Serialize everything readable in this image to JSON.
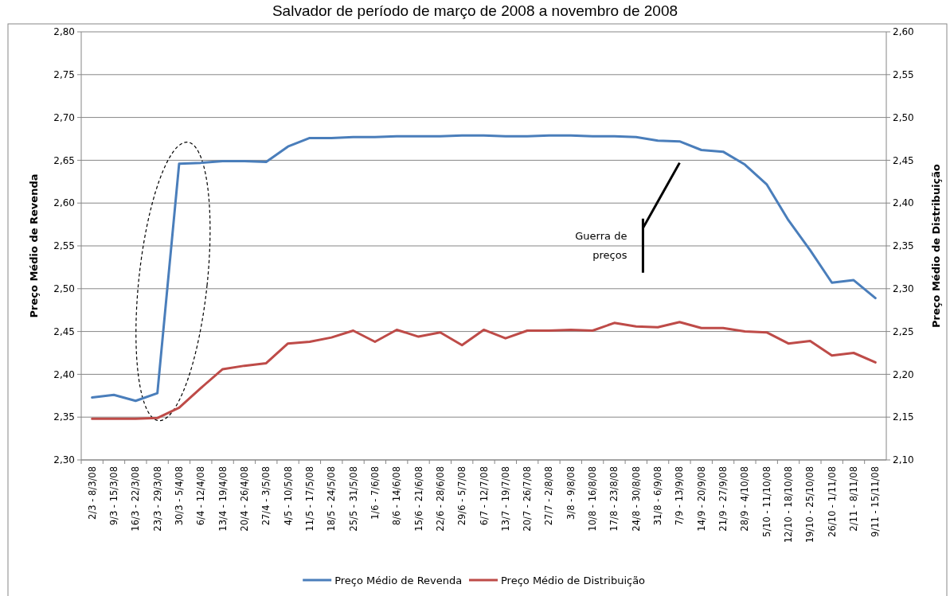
{
  "chart_data": {
    "type": "line",
    "title": "Salvador de período de março de 2008 a novembro de 2008",
    "ylabel": "Preço Médio de Revenda",
    "y2label": "Preço Médio de Distribuição",
    "categories": [
      "2/3 - 8/3/08",
      "9/3 - 15/3/08",
      "16/3 - 22/3/08",
      "23/3 - 29/3/08",
      "30/3 - 5/4/08",
      "6/4 - 12/4/08",
      "13/4 - 19/4/08",
      "20/4 - 26/4/08",
      "27/4 - 3/5/08",
      "4/5 - 10/5/08",
      "11/5 - 17/5/08",
      "18/5 - 24/5/08",
      "25/5 - 31/5/08",
      "1/6 - 7/6/08",
      "8/6 - 14/6/08",
      "15/6 - 21/6/08",
      "22/6 - 28/6/08",
      "29/6 - 5/7/08",
      "6/7 - 12/7/08",
      "13/7 - 19/7/08",
      "20/7 - 26/7/08",
      "27/7 - 2/8/08",
      "3/8 - 9/8/08",
      "10/8 - 16/8/08",
      "17/8 - 23/8/08",
      "24/8 - 30/8/08",
      "31/8 - 6/9/08",
      "7/9 - 13/9/08",
      "14/9 - 20/9/08",
      "21/9 - 27/9/08",
      "28/9 - 4/10/08",
      "5/10 - 11/10/08",
      "12/10 - 18/10/08",
      "19/10 - 25/10/08",
      "26/10 - 1/11/08",
      "2/11 - 8/11/08",
      "9/11 - 15/11/08"
    ],
    "series": [
      {
        "name": "Preço Médio de Revenda",
        "color": "#4a7ebb",
        "values": [
          2.373,
          2.376,
          2.369,
          2.378,
          2.646,
          2.647,
          2.649,
          2.649,
          2.648,
          2.666,
          2.676,
          2.676,
          2.677,
          2.677,
          2.678,
          2.678,
          2.678,
          2.679,
          2.679,
          2.678,
          2.678,
          2.679,
          2.679,
          2.678,
          2.678,
          2.677,
          2.673,
          2.672,
          2.662,
          2.66,
          2.645,
          2.622,
          2.58,
          2.545,
          2.507,
          2.51,
          2.489
        ]
      },
      {
        "name": "Preço Médio de Distribuição",
        "color": "#be4b48",
        "axis": "y2",
        "values": [
          2.148,
          2.148,
          2.148,
          2.149,
          2.161,
          2.184,
          2.206,
          2.21,
          2.213,
          2.236,
          2.238,
          2.243,
          2.251,
          2.238,
          2.252,
          2.244,
          2.249,
          2.234,
          2.252,
          2.242,
          2.251,
          2.251,
          2.252,
          2.251,
          2.26,
          2.256,
          2.255,
          2.261,
          2.254,
          2.254,
          2.25,
          2.249,
          2.236,
          2.239,
          2.222,
          2.225,
          2.214
        ]
      }
    ],
    "ylim": [
      2.3,
      2.8
    ],
    "yticks": [
      {
        "value": 2.3,
        "label": "2,30"
      },
      {
        "value": 2.35,
        "label": "2,35"
      },
      {
        "value": 2.4,
        "label": "2,40"
      },
      {
        "value": 2.45,
        "label": "2,45"
      },
      {
        "value": 2.5,
        "label": "2,50"
      },
      {
        "value": 2.55,
        "label": "2,55"
      },
      {
        "value": 2.6,
        "label": "2,60"
      },
      {
        "value": 2.65,
        "label": "2,65"
      },
      {
        "value": 2.7,
        "label": "2,70"
      },
      {
        "value": 2.75,
        "label": "2,75"
      },
      {
        "value": 2.8,
        "label": "2,80"
      }
    ],
    "y2lim": [
      2.1,
      2.6
    ],
    "y2ticks": [
      {
        "value": 2.1,
        "label": "2,10"
      },
      {
        "value": 2.15,
        "label": "2,15"
      },
      {
        "value": 2.2,
        "label": "2,20"
      },
      {
        "value": 2.25,
        "label": "2,25"
      },
      {
        "value": 2.3,
        "label": "2,30"
      },
      {
        "value": 2.35,
        "label": "2,35"
      },
      {
        "value": 2.4,
        "label": "2,40"
      },
      {
        "value": 2.45,
        "label": "2,45"
      },
      {
        "value": 2.5,
        "label": "2,50"
      },
      {
        "value": 2.55,
        "label": "2,55"
      },
      {
        "value": 2.6,
        "label": "2,60"
      }
    ],
    "annotations": [
      "Guerra de preços"
    ],
    "grid": "y",
    "legend": "bottom",
    "marker": "none",
    "line_style": "solid"
  }
}
